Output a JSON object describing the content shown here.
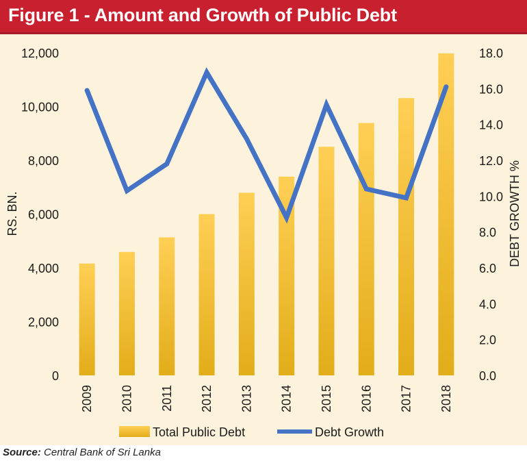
{
  "title": "Figure 1 - Amount and Growth of Public Debt",
  "source": {
    "label": "Source:",
    "text": " Central Bank of Sri Lanka"
  },
  "colors": {
    "title_bar": "#c8202f",
    "panel_bg": "#fdf3dc",
    "bar_top": "#ffcf55",
    "bar_bottom": "#e2ad1a",
    "line": "#4472c4"
  },
  "chart_data": {
    "type": "bar",
    "categories": [
      "2009",
      "2010",
      "2011",
      "2012",
      "2013",
      "2014",
      "2015",
      "2016",
      "2017",
      "2018"
    ],
    "series": [
      {
        "name": "Total Public Debt",
        "type": "bar",
        "axis": "left",
        "values": [
          4160,
          4590,
          5133,
          6000,
          6793,
          7391,
          8503,
          9387,
          10313,
          11977
        ]
      },
      {
        "name": "Debt Growth",
        "type": "line",
        "axis": "right",
        "values": [
          15.9,
          10.3,
          11.8,
          16.9,
          13.2,
          8.8,
          15.1,
          10.4,
          9.9,
          16.1
        ]
      }
    ],
    "ylabel": "RS. BN.",
    "y2label": "DEBT GROWTH %",
    "ylim": [
      0,
      12000
    ],
    "y2lim": [
      0,
      18
    ],
    "yticks": [
      "0",
      "2,000",
      "4,000",
      "6,000",
      "8,000",
      "10,000",
      "12,000"
    ],
    "y2ticks": [
      "0.0",
      "2.0",
      "4.0",
      "6.0",
      "8.0",
      "10.0",
      "12.0",
      "14.0",
      "16.0",
      "18.0"
    ],
    "grid": false,
    "legend_position": "bottom"
  }
}
